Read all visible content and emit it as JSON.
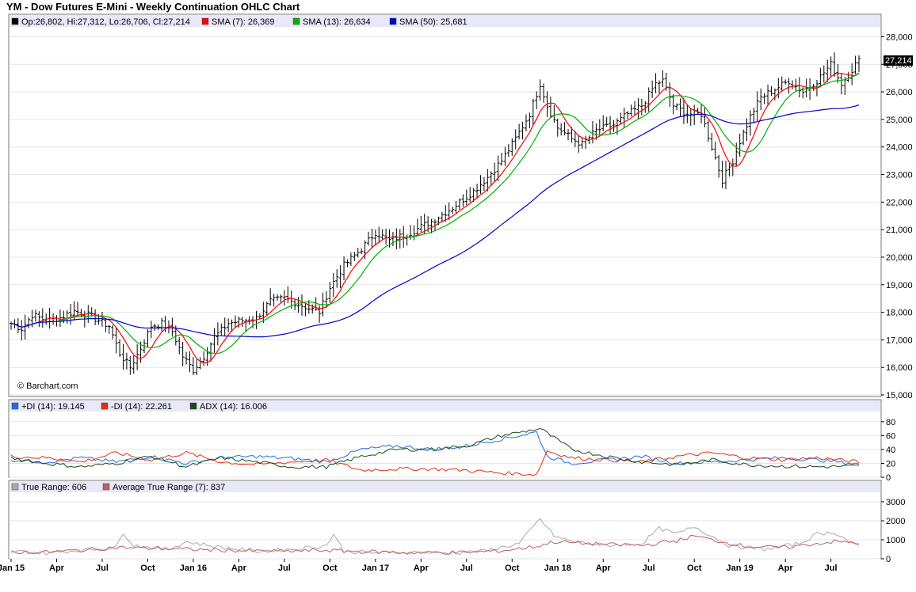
{
  "title": "YM - Dow Futures E-Mini - Weekly Continuation OHLC Chart",
  "watermark": "© Barchart.com",
  "chart_data": [
    {
      "type": "ohlc",
      "title": "YM - Dow Futures E-Mini - Weekly Continuation OHLC Chart",
      "legend": [
        {
          "label": "Op:26,802, Hi:27,312, Lo:26,706, Cl:27,214",
          "color": "#000000"
        },
        {
          "label": "SMA (7): 26,369",
          "color": "#ff0000"
        },
        {
          "label": "SMA (13): 26,634",
          "color": "#00b000"
        },
        {
          "label": "SMA (50): 25,681",
          "color": "#0000cc"
        }
      ],
      "last_price_label": "27,214",
      "ylim": [
        15000,
        28300
      ],
      "yticks": [
        "15,000",
        "16,000",
        "17,000",
        "18,000",
        "19,000",
        "20,000",
        "21,000",
        "22,000",
        "23,000",
        "24,000",
        "25,000",
        "26,000",
        "27,000",
        "28,000"
      ],
      "ytick_values": [
        15000,
        16000,
        17000,
        18000,
        19000,
        20000,
        21000,
        22000,
        23000,
        24000,
        25000,
        26000,
        27000,
        28000
      ],
      "xticks": [
        "Jan 15",
        "Apr",
        "Jul",
        "Oct",
        "Jan 16",
        "Apr",
        "Jul",
        "Oct",
        "Jan 17",
        "Apr",
        "Jul",
        "Oct",
        "Jan 18",
        "Apr",
        "Jul",
        "Oct",
        "Jan 19",
        "Apr",
        "Jul"
      ],
      "xlim_weeks": [
        0,
        242
      ],
      "price_anchors": [
        [
          0,
          17600
        ],
        [
          3,
          17400
        ],
        [
          6,
          17900
        ],
        [
          10,
          17700
        ],
        [
          14,
          17800
        ],
        [
          18,
          18050
        ],
        [
          22,
          17900
        ],
        [
          25,
          17700
        ],
        [
          28,
          17500
        ],
        [
          31,
          16500
        ],
        [
          34,
          16000
        ],
        [
          37,
          16700
        ],
        [
          40,
          17500
        ],
        [
          43,
          17600
        ],
        [
          46,
          17300
        ],
        [
          49,
          16400
        ],
        [
          52,
          15900
        ],
        [
          55,
          16400
        ],
        [
          58,
          17100
        ],
        [
          62,
          17600
        ],
        [
          66,
          17700
        ],
        [
          70,
          17800
        ],
        [
          74,
          18400
        ],
        [
          78,
          18500
        ],
        [
          82,
          18300
        ],
        [
          86,
          18100
        ],
        [
          88,
          18000
        ],
        [
          91,
          18900
        ],
        [
          95,
          19700
        ],
        [
          100,
          20300
        ],
        [
          104,
          20900
        ],
        [
          108,
          20600
        ],
        [
          114,
          20900
        ],
        [
          120,
          21300
        ],
        [
          126,
          21800
        ],
        [
          132,
          22400
        ],
        [
          136,
          22900
        ],
        [
          140,
          23500
        ],
        [
          144,
          24300
        ],
        [
          148,
          25200
        ],
        [
          151,
          26300
        ],
        [
          153,
          25500
        ],
        [
          156,
          24700
        ],
        [
          160,
          24300
        ],
        [
          163,
          24100
        ],
        [
          167,
          24600
        ],
        [
          172,
          24800
        ],
        [
          176,
          25200
        ],
        [
          180,
          25500
        ],
        [
          184,
          26300
        ],
        [
          186,
          26400
        ],
        [
          189,
          25500
        ],
        [
          193,
          25200
        ],
        [
          197,
          25200
        ],
        [
          200,
          24000
        ],
        [
          203,
          22800
        ],
        [
          206,
          23500
        ],
        [
          208,
          24200
        ],
        [
          211,
          25100
        ],
        [
          214,
          25800
        ],
        [
          218,
          26100
        ],
        [
          222,
          26400
        ],
        [
          226,
          26000
        ],
        [
          230,
          26400
        ],
        [
          234,
          27000
        ],
        [
          237,
          26300
        ],
        [
          240,
          26800
        ],
        [
          242,
          27214
        ]
      ],
      "series": [
        {
          "name": "SMA (7)",
          "window": 7,
          "color": "#ff0000"
        },
        {
          "name": "SMA (13)",
          "window": 13,
          "color": "#00b000"
        },
        {
          "name": "SMA (50)",
          "window": 50,
          "color": "#0000cc"
        }
      ]
    },
    {
      "type": "line",
      "legend": [
        {
          "label": "+DI (14): 19.145",
          "color": "#1e6fe0"
        },
        {
          "label": "-DI (14): 22.261",
          "color": "#e03010"
        },
        {
          "label": "ADX (14): 16.006",
          "color": "#1a4a1a"
        }
      ],
      "ylim": [
        0,
        90
      ],
      "yticks": [
        "0",
        "20",
        "40",
        "60",
        "80"
      ],
      "ytick_values": [
        0,
        20,
        40,
        60,
        80
      ],
      "series": [
        {
          "name": "+DI (14)",
          "color": "#1e6fe0",
          "anchors": [
            [
              0,
              25
            ],
            [
              10,
              22
            ],
            [
              20,
              28
            ],
            [
              30,
              22
            ],
            [
              40,
              30
            ],
            [
              50,
              20
            ],
            [
              60,
              28
            ],
            [
              70,
              30
            ],
            [
              80,
              27
            ],
            [
              90,
              22
            ],
            [
              100,
              40
            ],
            [
              110,
              45
            ],
            [
              120,
              40
            ],
            [
              130,
              45
            ],
            [
              140,
              55
            ],
            [
              150,
              65
            ],
            [
              153,
              30
            ],
            [
              160,
              20
            ],
            [
              170,
              25
            ],
            [
              180,
              30
            ],
            [
              190,
              20
            ],
            [
              200,
              22
            ],
            [
              210,
              25
            ],
            [
              220,
              28
            ],
            [
              230,
              25
            ],
            [
              242,
              19
            ]
          ]
        },
        {
          "name": "-DI (14)",
          "color": "#e03010",
          "anchors": [
            [
              0,
              30
            ],
            [
              10,
              28
            ],
            [
              20,
              22
            ],
            [
              30,
              35
            ],
            [
              40,
              25
            ],
            [
              50,
              35
            ],
            [
              60,
              22
            ],
            [
              70,
              18
            ],
            [
              80,
              22
            ],
            [
              90,
              25
            ],
            [
              100,
              10
            ],
            [
              110,
              12
            ],
            [
              120,
              12
            ],
            [
              130,
              10
            ],
            [
              140,
              6
            ],
            [
              150,
              4
            ],
            [
              153,
              38
            ],
            [
              160,
              28
            ],
            [
              170,
              25
            ],
            [
              180,
              22
            ],
            [
              190,
              30
            ],
            [
              200,
              35
            ],
            [
              210,
              28
            ],
            [
              220,
              25
            ],
            [
              230,
              28
            ],
            [
              242,
              22
            ]
          ]
        },
        {
          "name": "ADX (14)",
          "color": "#1a4a1a",
          "anchors": [
            [
              0,
              28
            ],
            [
              10,
              20
            ],
            [
              20,
              15
            ],
            [
              30,
              20
            ],
            [
              40,
              30
            ],
            [
              50,
              15
            ],
            [
              60,
              28
            ],
            [
              70,
              22
            ],
            [
              80,
              15
            ],
            [
              90,
              15
            ],
            [
              100,
              30
            ],
            [
              110,
              40
            ],
            [
              120,
              40
            ],
            [
              130,
              45
            ],
            [
              140,
              60
            ],
            [
              151,
              70
            ],
            [
              160,
              40
            ],
            [
              170,
              30
            ],
            [
              180,
              22
            ],
            [
              190,
              18
            ],
            [
              200,
              25
            ],
            [
              210,
              18
            ],
            [
              220,
              16
            ],
            [
              230,
              15
            ],
            [
              242,
              16
            ]
          ]
        }
      ]
    },
    {
      "type": "line",
      "legend": [
        {
          "label": "True Range: 606",
          "color": "#aaaaaa"
        },
        {
          "label": "Average True Range (7): 837",
          "color": "#c06060"
        }
      ],
      "ylim": [
        0,
        3500
      ],
      "yticks": [
        "0",
        "1000",
        "2000",
        "3000"
      ],
      "ytick_values": [
        0,
        1000,
        2000,
        3000
      ],
      "series": [
        {
          "name": "True Range",
          "color": "#aaaaaa",
          "anchors": [
            [
              0,
              400
            ],
            [
              10,
              300
            ],
            [
              20,
              450
            ],
            [
              30,
              600
            ],
            [
              32,
              1400
            ],
            [
              35,
              700
            ],
            [
              45,
              500
            ],
            [
              50,
              900
            ],
            [
              60,
              600
            ],
            [
              70,
              400
            ],
            [
              80,
              500
            ],
            [
              90,
              700
            ],
            [
              92,
              1300
            ],
            [
              95,
              400
            ],
            [
              105,
              300
            ],
            [
              115,
              350
            ],
            [
              125,
              300
            ],
            [
              135,
              400
            ],
            [
              145,
              800
            ],
            [
              151,
              2100
            ],
            [
              155,
              1200
            ],
            [
              160,
              900
            ],
            [
              170,
              700
            ],
            [
              180,
              800
            ],
            [
              185,
              1600
            ],
            [
              190,
              1300
            ],
            [
              195,
              1700
            ],
            [
              200,
              1200
            ],
            [
              205,
              700
            ],
            [
              215,
              500
            ],
            [
              225,
              800
            ],
            [
              230,
              1300
            ],
            [
              235,
              1400
            ],
            [
              242,
              606
            ]
          ]
        },
        {
          "name": "Average True Range (7)",
          "color": "#c06060",
          "anchors": [
            [
              0,
              350
            ],
            [
              10,
              350
            ],
            [
              20,
              450
            ],
            [
              30,
              600
            ],
            [
              40,
              550
            ],
            [
              50,
              500
            ],
            [
              60,
              450
            ],
            [
              70,
              400
            ],
            [
              80,
              400
            ],
            [
              90,
              450
            ],
            [
              100,
              380
            ],
            [
              110,
              340
            ],
            [
              120,
              320
            ],
            [
              130,
              340
            ],
            [
              140,
              420
            ],
            [
              150,
              650
            ],
            [
              155,
              900
            ],
            [
              160,
              850
            ],
            [
              170,
              750
            ],
            [
              180,
              700
            ],
            [
              190,
              950
            ],
            [
              195,
              1200
            ],
            [
              200,
              1000
            ],
            [
              210,
              650
            ],
            [
              220,
              580
            ],
            [
              230,
              800
            ],
            [
              235,
              900
            ],
            [
              242,
              837
            ]
          ]
        }
      ]
    }
  ]
}
